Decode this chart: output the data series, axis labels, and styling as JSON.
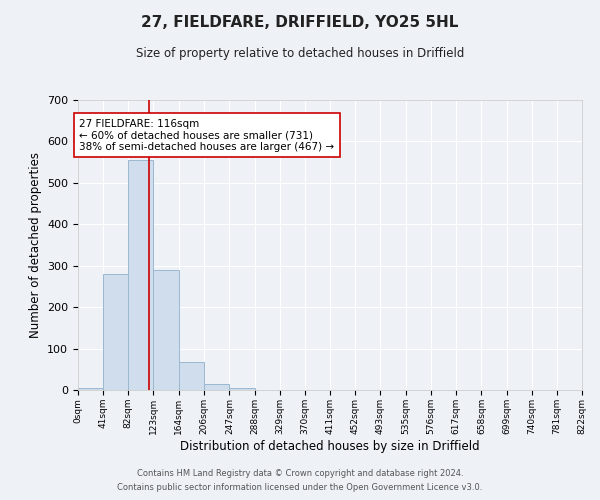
{
  "title": "27, FIELDFARE, DRIFFIELD, YO25 5HL",
  "subtitle": "Size of property relative to detached houses in Driffield",
  "xlabel": "Distribution of detached houses by size in Driffield",
  "ylabel": "Number of detached properties",
  "bar_color": "#cfdded",
  "bar_edge_color": "#9ab8d0",
  "bin_edges": [
    0,
    41,
    82,
    123,
    164,
    206,
    247,
    288,
    329,
    370,
    411,
    452,
    493,
    535,
    576,
    617,
    658,
    699,
    740,
    781,
    822
  ],
  "bar_heights": [
    5,
    280,
    555,
    290,
    68,
    14,
    5,
    0,
    0,
    0,
    0,
    0,
    0,
    0,
    0,
    0,
    0,
    0,
    0,
    0
  ],
  "tick_labels": [
    "0sqm",
    "41sqm",
    "82sqm",
    "123sqm",
    "164sqm",
    "206sqm",
    "247sqm",
    "288sqm",
    "329sqm",
    "370sqm",
    "411sqm",
    "452sqm",
    "493sqm",
    "535sqm",
    "576sqm",
    "617sqm",
    "658sqm",
    "699sqm",
    "740sqm",
    "781sqm",
    "822sqm"
  ],
  "ylim": [
    0,
    700
  ],
  "yticks": [
    0,
    100,
    200,
    300,
    400,
    500,
    600,
    700
  ],
  "property_line_x": 116,
  "annotation_line1": "27 FIELDFARE: 116sqm",
  "annotation_line2": "← 60% of detached houses are smaller (731)",
  "annotation_line3": "38% of semi-detached houses are larger (467) →",
  "footer_line1": "Contains HM Land Registry data © Crown copyright and database right 2024.",
  "footer_line2": "Contains public sector information licensed under the Open Government Licence v3.0.",
  "bg_color": "#eef2f7",
  "grid_color": "#ffffff",
  "property_line_color": "#cc0000"
}
